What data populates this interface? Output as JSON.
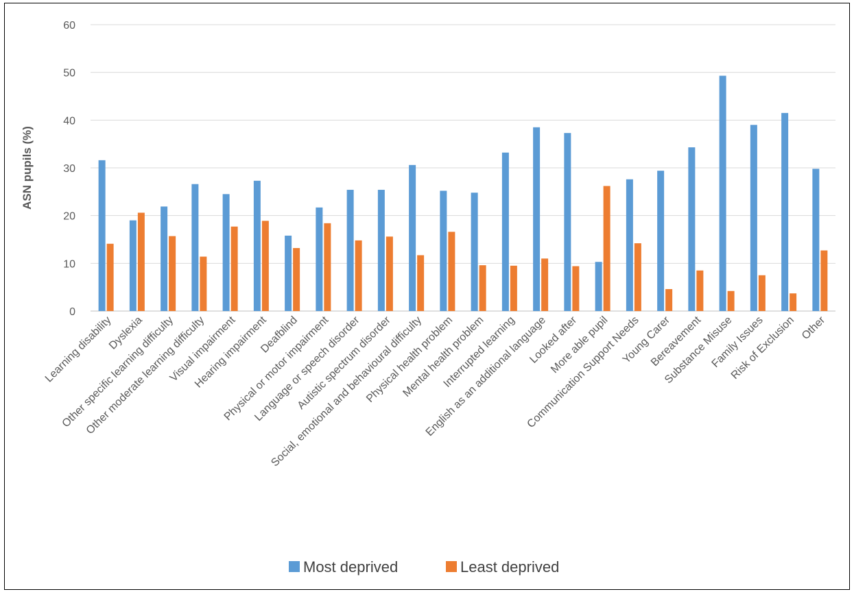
{
  "chart_data": {
    "type": "bar",
    "title": "",
    "xlabel": "",
    "ylabel": "ASN pupils (%)",
    "ylim": [
      0,
      60
    ],
    "yticks": [
      0,
      10,
      20,
      30,
      40,
      50,
      60
    ],
    "grid": true,
    "legend_position": "bottom",
    "categories": [
      "Learning disability",
      "Dyslexia",
      "Other specific learning difficulty",
      "Other moderate learning difficulty",
      "Visual impairment",
      "Hearing impairment",
      "Deafblind",
      "Physical or motor impairment",
      "Language or speech disorder",
      "Autistic spectrum disorder",
      "Social, emotional and behavioural difficulty",
      "Physical health problem",
      "Mental health problem",
      "Interrupted learning",
      "English as an additional language",
      "Looked after",
      "More able pupil",
      "Communication Support Needs",
      "Young Carer",
      "Bereavement",
      "Substance Misuse",
      "Family Issues",
      "Risk of Exclusion",
      "Other"
    ],
    "series": [
      {
        "name": "Most deprived",
        "color": "#5B9BD5",
        "values": [
          31.6,
          19.0,
          21.9,
          26.6,
          24.5,
          27.3,
          15.8,
          21.7,
          25.4,
          25.4,
          30.6,
          25.2,
          24.8,
          33.2,
          38.5,
          37.3,
          10.3,
          27.6,
          29.4,
          34.3,
          49.3,
          39.0,
          41.5,
          29.8
        ]
      },
      {
        "name": "Least deprived",
        "color": "#ED7D31",
        "values": [
          14.1,
          20.6,
          15.7,
          11.4,
          17.7,
          18.9,
          13.2,
          18.4,
          14.8,
          15.6,
          11.7,
          16.6,
          9.6,
          9.5,
          11.0,
          9.4,
          26.2,
          14.2,
          4.6,
          8.5,
          4.2,
          7.5,
          3.7,
          12.7
        ]
      }
    ]
  }
}
